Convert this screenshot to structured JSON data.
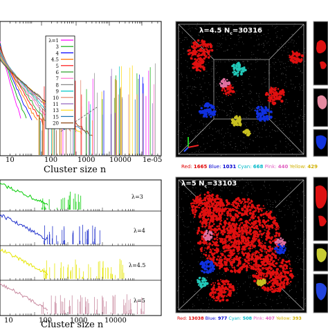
{
  "figure": {
    "top_plot": {
      "x_tick_labels": [
        "10",
        "100",
        "1000",
        "10000",
        "1e-05"
      ],
      "xlabel": "Cluster size n",
      "legend_title": "λ=1",
      "legend_entries": [
        "3",
        "4",
        "4.5",
        "5",
        "6",
        "7",
        "8",
        "9",
        "10",
        "11",
        "13",
        "15",
        "20"
      ],
      "legend_colors": [
        "#ff00ff",
        "#00aa00",
        "#0000ff",
        "#ff7700",
        "#ff0000",
        "#2ca02c",
        "#ff66cc",
        "#888888",
        "#00c8c8",
        "#e07a5f",
        "#9467bd",
        "#ffd700",
        "#1f77b4",
        "#8b4513"
      ]
    },
    "bottom_plot": {
      "panels": [
        {
          "label": "λ=3",
          "color": "#00cc00"
        },
        {
          "label": "λ=4",
          "color": "#2233cc"
        },
        {
          "label": "λ=4.5",
          "color": "#e6e600"
        },
        {
          "label": "λ=5",
          "color": "#c98aa0"
        }
      ],
      "x_tick_labels": [
        "10",
        "100",
        "1000",
        "10000"
      ],
      "xlabel": "Cluster size n"
    },
    "snapshot_top": {
      "title": "λ=4.5 N",
      "title_sub": "c",
      "title_value": "=30316",
      "caption": [
        {
          "name": "Red",
          "value": "1665",
          "color": "#e00000"
        },
        {
          "name": "Blue",
          "value": "1031",
          "color": "#0000d0"
        },
        {
          "name": "Cyan",
          "value": "668",
          "color": "#00b8c8"
        },
        {
          "name": "Pink",
          "value": "440",
          "color": "#e060c0"
        },
        {
          "name": "Yellow",
          "value": "429",
          "color": "#d0b000"
        }
      ]
    },
    "snapshot_bottom": {
      "title": "λ=5 N",
      "title_sub": "c",
      "title_value": "=33103",
      "caption": [
        {
          "name": "Red",
          "value": "13038",
          "color": "#e00000"
        },
        {
          "name": "Blue",
          "value": "977",
          "color": "#0000d0"
        },
        {
          "name": "Cyan",
          "value": "508",
          "color": "#00b8c8"
        },
        {
          "name": "Pink",
          "value": "407",
          "color": "#e060c0"
        },
        {
          "name": "Yellow",
          "value": "393",
          "color": "#d0b000"
        }
      ]
    }
  }
}
